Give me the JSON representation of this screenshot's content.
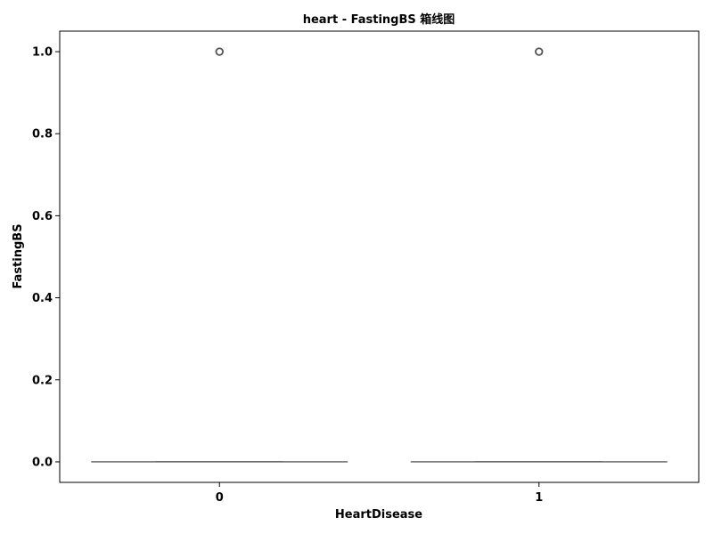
{
  "chart_data": {
    "type": "box",
    "title": "heart - FastingBS 箱线图",
    "xlabel": "HeartDisease",
    "ylabel": "FastingBS",
    "categories": [
      "0",
      "1"
    ],
    "boxes": [
      {
        "category": "0",
        "min": 0.0,
        "q1": 0.0,
        "median": 0.0,
        "q3": 0.0,
        "max": 0.0,
        "outliers": [
          1.0
        ]
      },
      {
        "category": "1",
        "min": 0.0,
        "q1": 0.0,
        "median": 0.0,
        "q3": 0.0,
        "max": 0.0,
        "outliers": [
          1.0
        ]
      }
    ],
    "ylim": [
      -0.05,
      1.05
    ],
    "yticks": [
      "0.0",
      "0.2",
      "0.4",
      "0.6",
      "0.8",
      "1.0"
    ],
    "ytick_values": [
      0.0,
      0.2,
      0.4,
      0.6,
      0.8,
      1.0
    ],
    "grid": false,
    "colors": {
      "box_line": "#555555",
      "outlier": "#555555",
      "frame": "#000000"
    }
  }
}
